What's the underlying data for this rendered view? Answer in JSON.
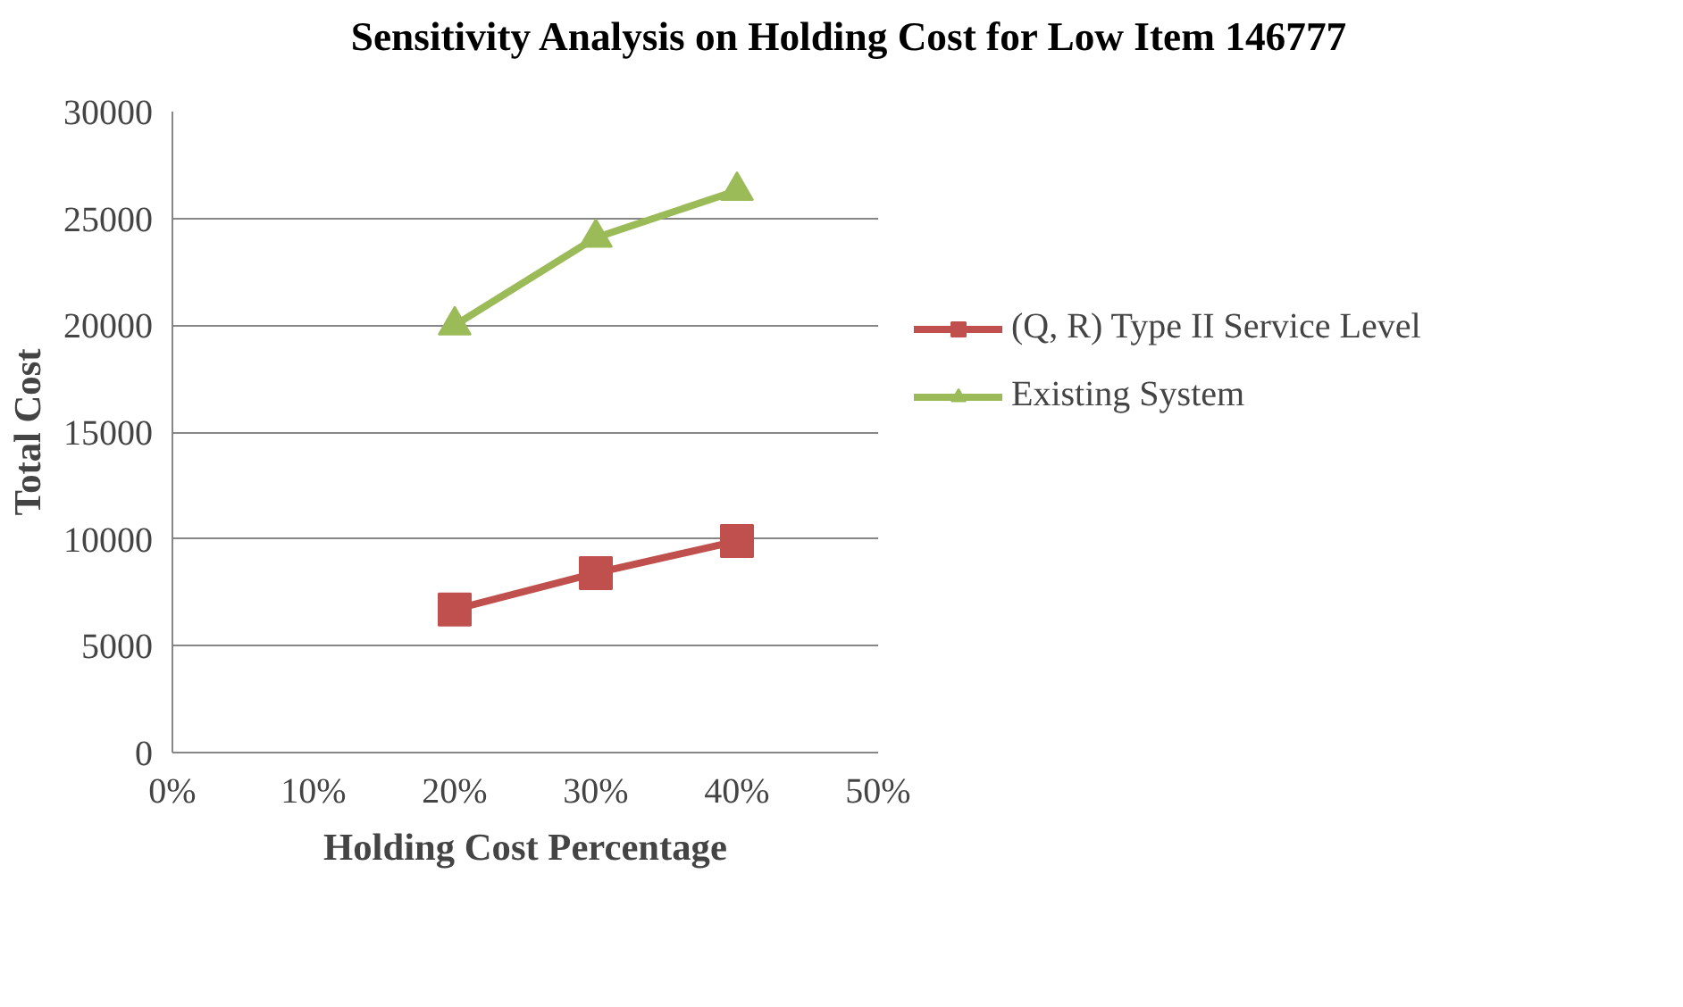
{
  "chart_data": {
    "type": "line",
    "title": "Sensitivity Analysis on Holding Cost for Low Item 146777",
    "xlabel": "Holding Cost Percentage",
    "ylabel": "Total Cost",
    "x": [
      0.2,
      0.3,
      0.4
    ],
    "series": [
      {
        "name": "(Q, R) Type II Service Level",
        "color": "#c0504d",
        "marker": "square",
        "values": [
          6700,
          8400,
          9900
        ]
      },
      {
        "name": "Existing System",
        "color": "#9bbb59",
        "marker": "triangle",
        "values": [
          20000,
          24100,
          26300
        ]
      }
    ],
    "xlim": [
      0,
      0.5
    ],
    "xticks": [
      {
        "value": 0,
        "label": "0%"
      },
      {
        "value": 0.1,
        "label": "10%"
      },
      {
        "value": 0.2,
        "label": "20%"
      },
      {
        "value": 0.3,
        "label": "30%"
      },
      {
        "value": 0.4,
        "label": "40%"
      },
      {
        "value": 0.5,
        "label": "50%"
      }
    ],
    "ylim": [
      0,
      30000
    ],
    "yticks": [
      0,
      5000,
      10000,
      15000,
      20000,
      25000,
      30000
    ],
    "grid": "y",
    "legend": "right",
    "line_style": "solid"
  }
}
